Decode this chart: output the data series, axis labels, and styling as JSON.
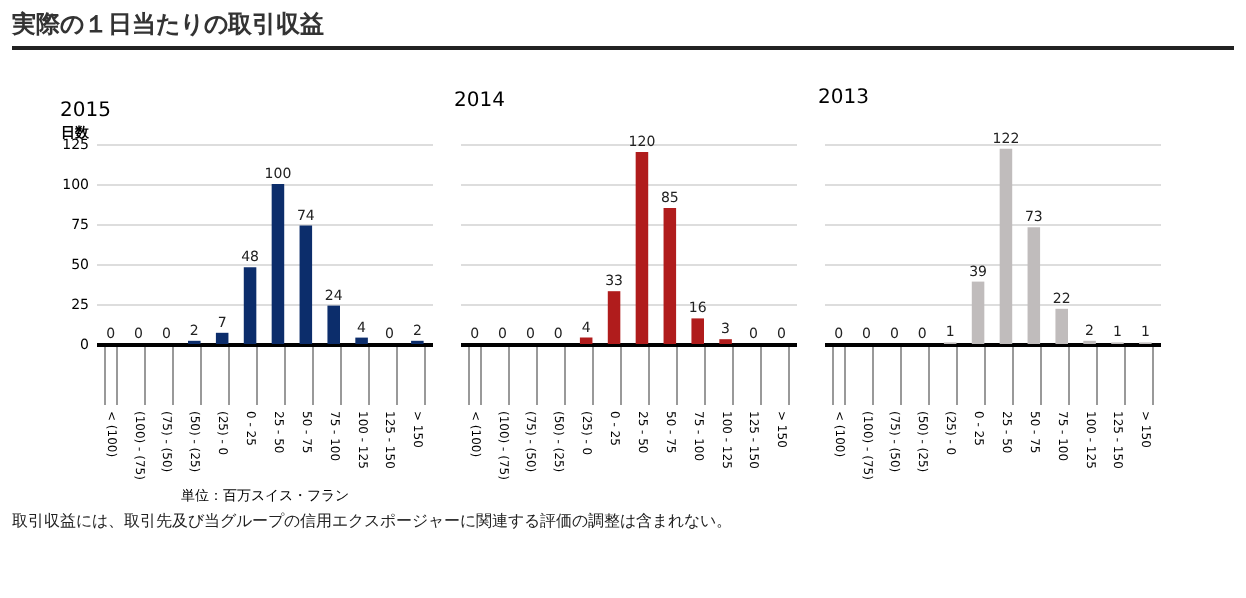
{
  "chart_data": [
    {
      "type": "bar",
      "title": "実際の１日当たりの取引収益",
      "subtitle": "2015",
      "ylabel": "日数",
      "xlabel": "単位：百万スイス・フラン",
      "annotations": [
        "取引収益には、取引先及び当グループの信用エクスポージャーに関連する評価の調整は含まれない。"
      ],
      "categories": [
        "< (100)",
        "(100) - (75)",
        "(75) - (50)",
        "(50) - (25)",
        "(25) - 0",
        "0 - 25",
        "25 - 50",
        "50 - 75",
        "75 - 100",
        "100 - 125",
        "125 - 150",
        "> 150"
      ],
      "series": [
        {
          "color": "#0c2d6b",
          "values": [
            0,
            0,
            0,
            2,
            7,
            48,
            100,
            74,
            24,
            4,
            0,
            2
          ]
        }
      ],
      "ylim": [
        0,
        125
      ],
      "yticks": [
        0,
        25,
        50,
        75,
        100,
        125
      ],
      "grid": "y",
      "data_labels": true
    },
    {
      "type": "bar",
      "subtitle": "2014",
      "categories": [
        "< (100)",
        "(100) - (75)",
        "(75) - (50)",
        "(50) - (25)",
        "(25) - 0",
        "0 - 25",
        "25 - 50",
        "50 - 75",
        "75 - 100",
        "100 - 125",
        "125 - 150",
        "> 150"
      ],
      "series": [
        {
          "color": "#b01c1c",
          "values": [
            0,
            0,
            0,
            0,
            4,
            33,
            120,
            85,
            16,
            3,
            0,
            0
          ]
        }
      ],
      "ylim": [
        0,
        125
      ],
      "yticks": [
        0,
        25,
        50,
        75,
        100,
        125
      ],
      "grid": "y",
      "data_labels": true,
      "tick_labels": "x"
    },
    {
      "type": "bar",
      "subtitle": "2013",
      "categories": [
        "< (100)",
        "(100) - (75)",
        "(75) - (50)",
        "(50) - (25)",
        "(25) - 0",
        "0 - 25",
        "25 - 50",
        "50 - 75",
        "75 - 100",
        "100 - 125",
        "125 - 150",
        "> 150"
      ],
      "series": [
        {
          "color": "#c0bcbc",
          "values": [
            0,
            0,
            0,
            0,
            1,
            39,
            122,
            73,
            22,
            2,
            1,
            1
          ]
        }
      ],
      "ylim": [
        0,
        125
      ],
      "yticks": [
        0,
        25,
        50,
        75,
        100,
        125
      ],
      "grid": "y",
      "data_labels": true,
      "tick_labels": "x"
    }
  ]
}
